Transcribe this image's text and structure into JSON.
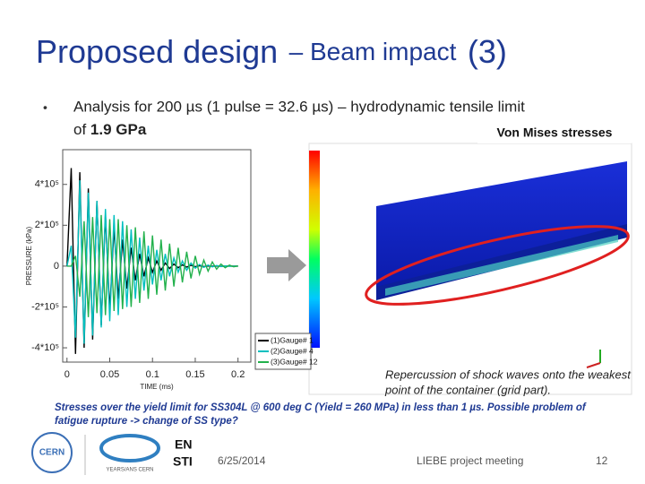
{
  "slide": {
    "title_main": "Proposed design",
    "title_sub": "– Beam impact",
    "title_num": "(3)",
    "bullet": "•",
    "bullet_line1": "Analysis for 200 µs (1 pulse = 32.6 µs) – hydrodynamic tensile limit",
    "bullet_line2_pre": "of",
    "bullet_line2_bold": "1.9 GPa",
    "image_label": "Von Mises stresses",
    "caption_line1": "Repercussion of shock waves onto the weakest",
    "caption_line2": "point of the container (grid part).",
    "note_line1": "Stresses over the yield limit for SS304L @ 600 deg C (Yield = 260 MPa) in less than 1 µs. Possible problem of",
    "note_line2": "fatigue rupture -> change of SS type?",
    "logo_cern": "CERN",
    "logo_years": "YEARS/ANS CERN",
    "logo_en": "EN",
    "logo_sti": "STI",
    "date": "6/25/2014",
    "meeting": "LIEBE project meeting",
    "page": "12"
  },
  "chart_data": {
    "type": "line",
    "xlabel": "TIME (ms)",
    "ylabel": "PRESSURE (kPa)",
    "x": [
      0,
      0.005,
      0.01,
      0.015,
      0.02,
      0.025,
      0.03,
      0.035,
      0.04,
      0.045,
      0.05,
      0.055,
      0.06,
      0.065,
      0.07,
      0.075,
      0.08,
      0.085,
      0.09,
      0.095,
      0.1,
      0.105,
      0.11,
      0.115,
      0.12,
      0.125,
      0.13,
      0.135,
      0.14,
      0.145,
      0.15,
      0.155,
      0.16,
      0.165,
      0.17,
      0.175,
      0.18,
      0.185,
      0.19,
      0.195,
      0.2
    ],
    "series": [
      {
        "name": "(1)Gauge# 1",
        "color": "#000000",
        "values": [
          0,
          480000,
          -430000,
          460000,
          -400000,
          380000,
          -360000,
          320000,
          -290000,
          250000,
          -220000,
          190000,
          -160000,
          130000,
          -110000,
          90000,
          -70000,
          60000,
          -50000,
          40000,
          -30000,
          25000,
          -20000,
          15000,
          -12000,
          10000,
          -8000,
          6000,
          -5000,
          4000,
          -3000,
          2000,
          -2000,
          1000,
          -1000,
          1000,
          -1000,
          0,
          0,
          0,
          0
        ]
      },
      {
        "name": "(2)Gauge# 4",
        "color": "#00bfbf",
        "values": [
          0,
          100000,
          -350000,
          420000,
          -380000,
          360000,
          -340000,
          320000,
          -300000,
          280000,
          -270000,
          250000,
          -240000,
          220000,
          -200000,
          180000,
          -160000,
          140000,
          -120000,
          100000,
          -90000,
          80000,
          -70000,
          60000,
          -50000,
          40000,
          -30000,
          25000,
          -20000,
          15000,
          -10000,
          8000,
          -6000,
          5000,
          -4000,
          3000,
          -2000,
          1000,
          -1000,
          0,
          0
        ]
      },
      {
        "name": "(3)Gauge# 12",
        "color": "#22b14c",
        "values": [
          0,
          0,
          50000,
          -150000,
          220000,
          -250000,
          240000,
          -230000,
          250000,
          -240000,
          230000,
          -220000,
          230000,
          -210000,
          200000,
          -200000,
          190000,
          -180000,
          170000,
          -160000,
          150000,
          -140000,
          130000,
          -120000,
          110000,
          -100000,
          90000,
          -80000,
          70000,
          -60000,
          50000,
          -40000,
          30000,
          -25000,
          20000,
          -15000,
          10000,
          -8000,
          5000,
          -3000,
          1000
        ]
      }
    ],
    "xlim": [
      -0.005,
      0.215
    ],
    "ylim": [
      -470000,
      570000
    ],
    "xticks": [
      0,
      0.05,
      0.1,
      0.15,
      0.2
    ],
    "yticks": [
      {
        "value": -400000,
        "label": "-4*10⁵"
      },
      {
        "value": -200000,
        "label": "-2*10⁵"
      },
      0,
      {
        "value": 200000,
        "label": "2*10⁵"
      },
      {
        "value": 400000,
        "label": "4*10⁵"
      }
    ],
    "legend": "lower right"
  }
}
